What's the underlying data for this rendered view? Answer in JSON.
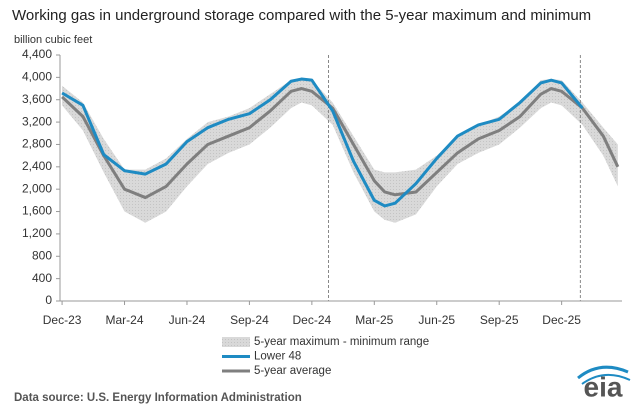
{
  "chart_data": {
    "type": "line",
    "title": "Working gas in underground storage compared with the 5-year maximum and minimum",
    "y_label": "billion cubic feet",
    "source": "Data source: U.S. Energy Information Administration",
    "logo_text": "eia",
    "x": [
      0,
      1,
      2,
      3,
      4,
      5,
      6,
      7,
      8,
      9,
      10,
      11,
      11.5,
      12,
      13,
      14,
      15,
      15.5,
      16,
      17,
      18,
      19,
      20,
      21,
      22,
      23,
      23.5,
      24,
      25,
      26,
      26.7
    ],
    "xlim": [
      -0.1,
      26.9
    ],
    "xticks": [
      {
        "value": 0,
        "label": "Dec-23"
      },
      {
        "value": 3,
        "label": "Mar-24"
      },
      {
        "value": 6,
        "label": "Jun-24"
      },
      {
        "value": 9,
        "label": "Sep-24"
      },
      {
        "value": 12,
        "label": "Dec-24"
      },
      {
        "value": 15,
        "label": "Mar-25"
      },
      {
        "value": 18,
        "label": "Jun-25"
      },
      {
        "value": 21,
        "label": "Sep-25"
      },
      {
        "value": 24,
        "label": "Dec-25"
      }
    ],
    "ylim": [
      0,
      4400
    ],
    "yticks": [
      0,
      400,
      800,
      {
        "value": 1200,
        "label": "1,200"
      },
      {
        "value": 1600,
        "label": "1,600"
      },
      {
        "value": 2000,
        "label": "2,000"
      },
      {
        "value": 2400,
        "label": "2,400"
      },
      {
        "value": 2800,
        "label": "2,800"
      },
      {
        "value": 3200,
        "label": "3,200"
      },
      {
        "value": 3600,
        "label": "3,600"
      },
      {
        "value": 4000,
        "label": "4,000"
      },
      {
        "value": 4400,
        "label": "4,400"
      }
    ],
    "grid": false,
    "reference_lines": [
      12.8,
      24.9
    ],
    "range": {
      "name": "5-year maximum - minimum range",
      "color": "#d4d4d4",
      "high": [
        3850,
        3550,
        2900,
        2350,
        2350,
        2550,
        2900,
        3200,
        3300,
        3450,
        3700,
        3950,
        3970,
        3950,
        3550,
        2950,
        2350,
        2300,
        2300,
        2350,
        2600,
        2950,
        3150,
        3300,
        3550,
        3950,
        3970,
        3950,
        3550,
        3100,
        2800
      ],
      "low": [
        3500,
        3050,
        2300,
        1600,
        1400,
        1600,
        2050,
        2450,
        2650,
        2800,
        3100,
        3450,
        3550,
        3500,
        3150,
        2300,
        1600,
        1450,
        1400,
        1550,
        2050,
        2450,
        2650,
        2800,
        3100,
        3450,
        3550,
        3500,
        3150,
        2600,
        2050
      ]
    },
    "series": [
      {
        "name": "Lower 48",
        "color": "#1e8bc3",
        "values": [
          3720,
          3500,
          2620,
          2330,
          2270,
          2450,
          2850,
          3100,
          3250,
          3350,
          3600,
          3930,
          3970,
          3950,
          3400,
          2500,
          1800,
          1700,
          1750,
          2100,
          2550,
          2950,
          3150,
          3250,
          3550,
          3900,
          3950,
          3900,
          3450,
          null,
          null
        ]
      },
      {
        "name": "5-year average",
        "color": "#7f7f7f",
        "values": [
          3650,
          3300,
          2600,
          2000,
          1850,
          2050,
          2450,
          2800,
          2950,
          3100,
          3400,
          3750,
          3800,
          3750,
          3450,
          2800,
          2150,
          1950,
          1900,
          1950,
          2300,
          2650,
          2900,
          3050,
          3300,
          3700,
          3800,
          3750,
          3450,
          2950,
          2400
        ]
      }
    ]
  }
}
